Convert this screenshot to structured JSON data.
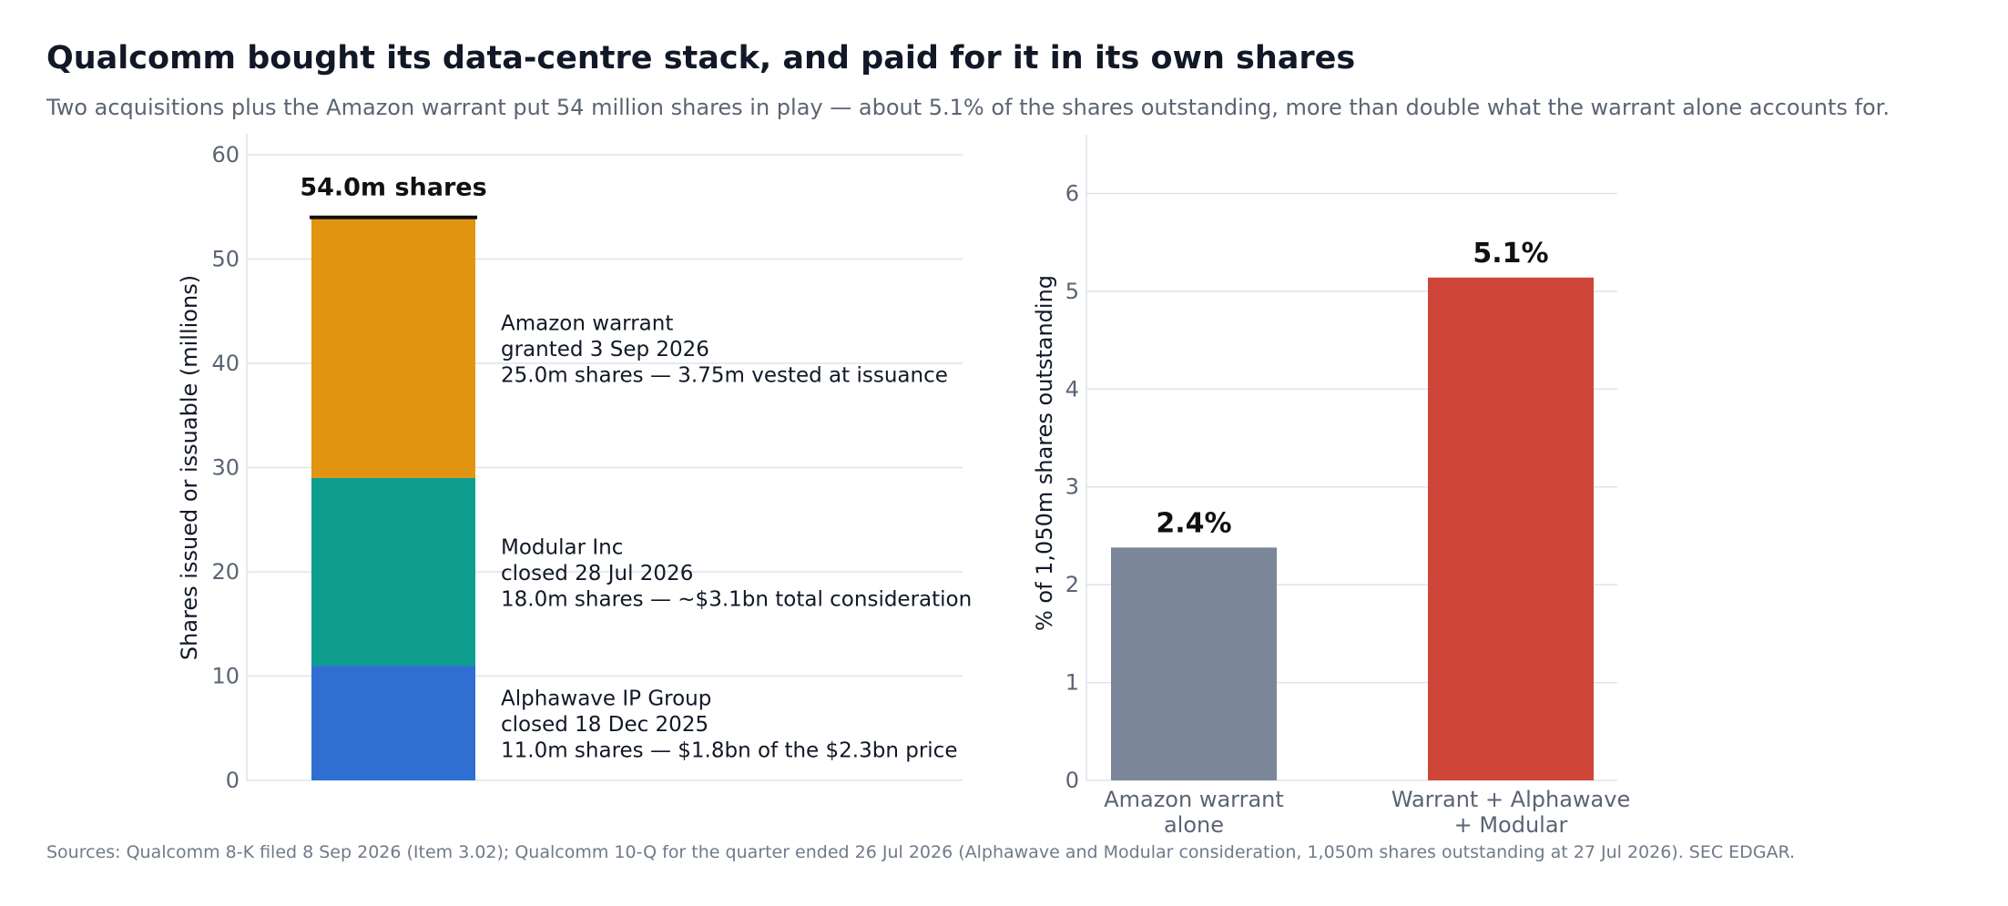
{
  "title": "Qualcomm bought its data-centre stack, and paid for it in its own shares",
  "subtitle": "Two acquisitions plus the Amazon warrant put 54 million shares in play — about 5.1% of the shares outstanding, more than double what the warrant alone accounts for.",
  "source": "Sources: Qualcomm 8-K filed 8 Sep 2026 (Item 3.02); Qualcomm 10-Q for the quarter ended 26 Jul 2026 (Alphawave and Modular consideration, 1,050m shares outstanding at 27 Jul 2026). SEC EDGAR.",
  "colors": {
    "alphawave": "#2f6fd1",
    "modular": "#0f9d8e",
    "amazon": "#e19411",
    "warrant_alone": "#7b8698",
    "combined": "#d0453a",
    "grid": "#dfe3ea",
    "tick": "#5b6474"
  },
  "chart_data": [
    {
      "type": "bar",
      "stacked": true,
      "ylabel": "Shares issued or issuable (millions)",
      "ylim": [
        0,
        60
      ],
      "yticks": [
        0,
        10,
        20,
        30,
        40,
        50,
        60
      ],
      "grid": true,
      "total_label": "54.0m shares",
      "total": 54.0,
      "segments": [
        {
          "key": "alphawave",
          "value": 11.0,
          "label_lines": [
            "Alphawave IP Group",
            "closed 18 Dec 2025",
            "11.0m shares  —  $1.8bn of the $2.3bn price"
          ]
        },
        {
          "key": "modular",
          "value": 18.0,
          "label_lines": [
            "Modular Inc",
            "closed 28 Jul 2026",
            "18.0m shares  —  ~$3.1bn total consideration"
          ]
        },
        {
          "key": "amazon",
          "value": 25.0,
          "label_lines": [
            "Amazon warrant",
            "granted 3 Sep 2026",
            "25.0m shares  —  3.75m vested at issuance"
          ]
        }
      ]
    },
    {
      "type": "bar",
      "ylabel": "% of 1,050m shares outstanding",
      "ylim": [
        0,
        6.6
      ],
      "yticks": [
        0,
        1,
        2,
        3,
        4,
        5,
        6
      ],
      "grid": true,
      "bars": [
        {
          "key": "warrant_alone",
          "category_lines": [
            "Amazon warrant",
            "alone"
          ],
          "value": 2.38,
          "value_label": "2.4%"
        },
        {
          "key": "combined",
          "category_lines": [
            "Warrant + Alphawave",
            "+ Modular"
          ],
          "value": 5.14,
          "value_label": "5.1%"
        }
      ]
    }
  ]
}
